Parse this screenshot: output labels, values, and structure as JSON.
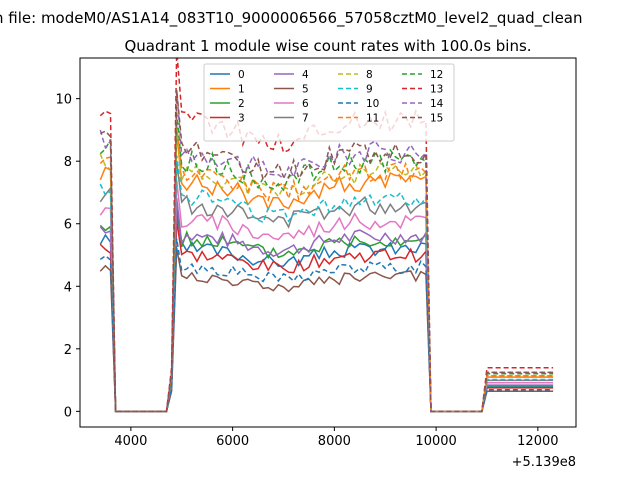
{
  "chart_data": {
    "type": "line",
    "suptitle": "n file: modeM0/AS1A14_083T10_9000006566_57058cztM0_level2_quad_clean",
    "title": "Quadrant 1 module wise count rates with 100.0s bins.",
    "xlabel": "",
    "ylabel": "",
    "x_offset_label": "+5.139e8",
    "xlim": [
      3000,
      12750
    ],
    "ylim": [
      -0.5,
      11.3
    ],
    "x_ticks": [
      4000,
      6000,
      8000,
      10000,
      12000
    ],
    "y_ticks": [
      0,
      2,
      4,
      6,
      8,
      10
    ],
    "x_tick_labels": [
      "4000",
      "6000",
      "8000",
      "10000",
      "12000"
    ],
    "y_tick_labels": [
      "0",
      "2",
      "4",
      "6",
      "8",
      "10"
    ],
    "grid": false,
    "legend_position": "top-center",
    "legend_columns": 4,
    "segments": [
      {
        "x_start": 3400,
        "x_end": 3700,
        "bin": 100
      },
      {
        "x_start": 3700,
        "x_end": 4700,
        "bin": 100,
        "zero": true
      },
      {
        "x_start": 4700,
        "x_end": 9800,
        "bin": 100
      },
      {
        "x_start": 9800,
        "x_end": 10900,
        "bin": 100,
        "zero": true
      },
      {
        "x_start": 10900,
        "x_end": 12300,
        "bin": 100
      }
    ],
    "series": [
      {
        "name": "0",
        "color": "#1f77b4",
        "style": "solid",
        "level": 5.2
      },
      {
        "name": "1",
        "color": "#ff7f0e",
        "style": "solid",
        "level": 7.3
      },
      {
        "name": "2",
        "color": "#2ca02c",
        "style": "solid",
        "level": 5.5
      },
      {
        "name": "3",
        "color": "#d62728",
        "style": "solid",
        "level": 5.0
      },
      {
        "name": "4",
        "color": "#9467bd",
        "style": "solid",
        "level": 5.6
      },
      {
        "name": "5",
        "color": "#8c564b",
        "style": "solid",
        "level": 4.3
      },
      {
        "name": "6",
        "color": "#e377c2",
        "style": "solid",
        "level": 6.1
      },
      {
        "name": "7",
        "color": "#7f7f7f",
        "style": "solid",
        "level": 6.6
      },
      {
        "name": "8",
        "color": "#bcbd22",
        "style": "dashed",
        "level": 7.6
      },
      {
        "name": "9",
        "color": "#17becf",
        "style": "dashed",
        "level": 6.8
      },
      {
        "name": "10",
        "color": "#1f77b4",
        "style": "dashed",
        "level": 4.6
      },
      {
        "name": "11",
        "color": "#ff7f0e",
        "style": "dashed",
        "level": 7.6
      },
      {
        "name": "12",
        "color": "#2ca02c",
        "style": "dashed",
        "level": 8.0
      },
      {
        "name": "13",
        "color": "#d62728",
        "style": "dashed",
        "level": 9.3
      },
      {
        "name": "14",
        "color": "#9467bd",
        "style": "dashed",
        "level": 8.3
      },
      {
        "name": "15",
        "color": "#8c564b",
        "style": "dashed",
        "level": 8.3
      }
    ]
  }
}
